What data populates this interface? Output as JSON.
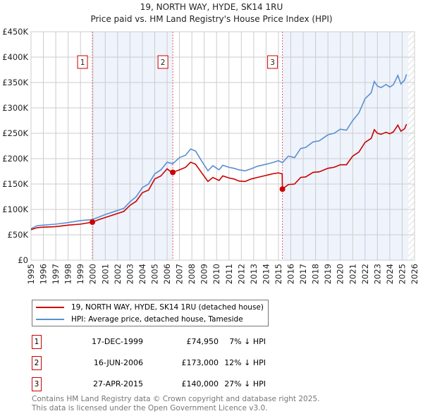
{
  "chart_data": {
    "type": "line",
    "title": "19, NORTH WAY, HYDE, SK14 1RU",
    "subtitle": "Price paid vs. HM Land Registry's House Price Index (HPI)",
    "xlim": [
      1995,
      2026
    ],
    "ylim": [
      0,
      450000
    ],
    "x_ticks": [
      "1995",
      "1996",
      "1997",
      "1998",
      "1999",
      "2000",
      "2001",
      "2002",
      "2003",
      "2004",
      "2005",
      "2006",
      "2007",
      "2008",
      "2009",
      "2010",
      "2011",
      "2012",
      "2013",
      "2014",
      "2015",
      "2016",
      "2017",
      "2018",
      "2019",
      "2020",
      "2021",
      "2022",
      "2023",
      "2024",
      "2025",
      "2026"
    ],
    "y_ticks": [
      {
        "v": 0,
        "label": "£0"
      },
      {
        "v": 50000,
        "label": "£50K"
      },
      {
        "v": 100000,
        "label": "£100K"
      },
      {
        "v": 150000,
        "label": "£150K"
      },
      {
        "v": 200000,
        "label": "£200K"
      },
      {
        "v": 250000,
        "label": "£250K"
      },
      {
        "v": 300000,
        "label": "£300K"
      },
      {
        "v": 350000,
        "label": "£350K"
      },
      {
        "v": 400000,
        "label": "£400K"
      },
      {
        "v": 450000,
        "label": "£450K"
      }
    ],
    "grid": true,
    "series": [
      {
        "name": "HPI: Average price, detached house, Tameside",
        "color": "#5b8fd0",
        "x": [
          1995,
          1995.5,
          1996,
          1997,
          1998,
          1999,
          1999.96,
          2000.5,
          2001,
          2002,
          2002.5,
          2003,
          2003.5,
          2004,
          2004.5,
          2005,
          2005.5,
          2006,
          2006.46,
          2007,
          2007.5,
          2007.9,
          2008.3,
          2008.8,
          2009.3,
          2009.7,
          2010.2,
          2010.5,
          2011,
          2011.4,
          2011.8,
          2012.3,
          2012.8,
          2013.3,
          2014,
          2014.5,
          2015,
          2015.32,
          2015.8,
          2016.3,
          2016.8,
          2017.2,
          2017.8,
          2018.3,
          2019,
          2019.5,
          2020,
          2020.5,
          2021,
          2021.5,
          2022,
          2022.5,
          2022.75,
          2023,
          2023.3,
          2023.7,
          2024,
          2024.3,
          2024.65,
          2024.9,
          2025.2,
          2025.35
        ],
        "y": [
          62000,
          68000,
          69000,
          71000,
          74000,
          78000,
          80000,
          85000,
          90000,
          98000,
          102000,
          115000,
          125000,
          143000,
          150000,
          170000,
          178000,
          193000,
          190000,
          202000,
          207000,
          219000,
          215000,
          195000,
          176000,
          186000,
          178000,
          187000,
          183000,
          181000,
          178000,
          176000,
          180000,
          185000,
          189000,
          192000,
          196000,
          192000,
          205000,
          202000,
          220000,
          222000,
          233000,
          235000,
          247000,
          250000,
          258000,
          256000,
          275000,
          290000,
          318000,
          330000,
          352000,
          343000,
          340000,
          346000,
          341000,
          346000,
          364000,
          347000,
          355000,
          366000
        ]
      },
      {
        "name": "19, NORTH WAY, HYDE, SK14 1RU (detached house)",
        "color": "#cc0000",
        "x": [
          1995,
          1995.5,
          1996,
          1997,
          1998,
          1999,
          1999.96,
          2000.5,
          2001,
          2002,
          2002.5,
          2003,
          2003.5,
          2004,
          2004.5,
          2005,
          2005.5,
          2006,
          2006.2,
          2006.46,
          2007,
          2007.5,
          2007.9,
          2008.3,
          2008.8,
          2009.3,
          2009.7,
          2010.2,
          2010.5,
          2011,
          2011.4,
          2011.8,
          2012.3,
          2012.8,
          2013.3,
          2014,
          2014.5,
          2015,
          2015.3,
          2015.32,
          2015.8,
          2016.3,
          2016.8,
          2017.2,
          2017.8,
          2018.3,
          2019,
          2019.5,
          2020,
          2020.5,
          2021,
          2021.5,
          2022,
          2022.5,
          2022.75,
          2023,
          2023.3,
          2023.7,
          2024,
          2024.3,
          2024.65,
          2024.9,
          2025.2,
          2025.35
        ],
        "y": [
          60000,
          64000,
          65000,
          66000,
          69000,
          71000,
          74950,
          80000,
          84000,
          92000,
          96000,
          108000,
          116000,
          133000,
          138000,
          160000,
          166000,
          180000,
          176000,
          173000,
          178000,
          183000,
          193000,
          189000,
          172000,
          155000,
          163000,
          157000,
          166000,
          162000,
          160000,
          156000,
          155000,
          160000,
          163000,
          167000,
          170000,
          172000,
          170000,
          140000,
          149000,
          150000,
          163000,
          164000,
          173000,
          174000,
          181000,
          183000,
          188000,
          188000,
          205000,
          213000,
          232000,
          240000,
          257000,
          250000,
          248000,
          252000,
          249000,
          253000,
          266000,
          254000,
          259000,
          268000
        ]
      }
    ],
    "sales": [
      {
        "n": "1",
        "x": 1999.96,
        "price": 74950,
        "date": "17-DEC-1999",
        "price_label": "£74,950",
        "hpi": "7% ↓ HPI"
      },
      {
        "n": "2",
        "x": 2006.46,
        "price": 173000,
        "date": "16-JUN-2006",
        "price_label": "£173,000",
        "hpi": "12% ↓ HPI"
      },
      {
        "n": "3",
        "x": 2015.32,
        "price": 140000,
        "date": "27-APR-2015",
        "price_label": "£140,000",
        "hpi": "27% ↓ HPI"
      }
    ],
    "shaded": [
      [
        1999.96,
        2006.46
      ],
      [
        2015.32,
        2026
      ]
    ],
    "hatched_from": 2025.5,
    "legend_position": "below"
  },
  "legend": {
    "red": "19, NORTH WAY, HYDE, SK14 1RU (detached house)",
    "blue": "HPI: Average price, detached house, Tameside"
  },
  "footer": {
    "line1": "Contains HM Land Registry data © Crown copyright and database right 2025.",
    "line2": "This data is licensed under the Open Government Licence v3.0."
  }
}
